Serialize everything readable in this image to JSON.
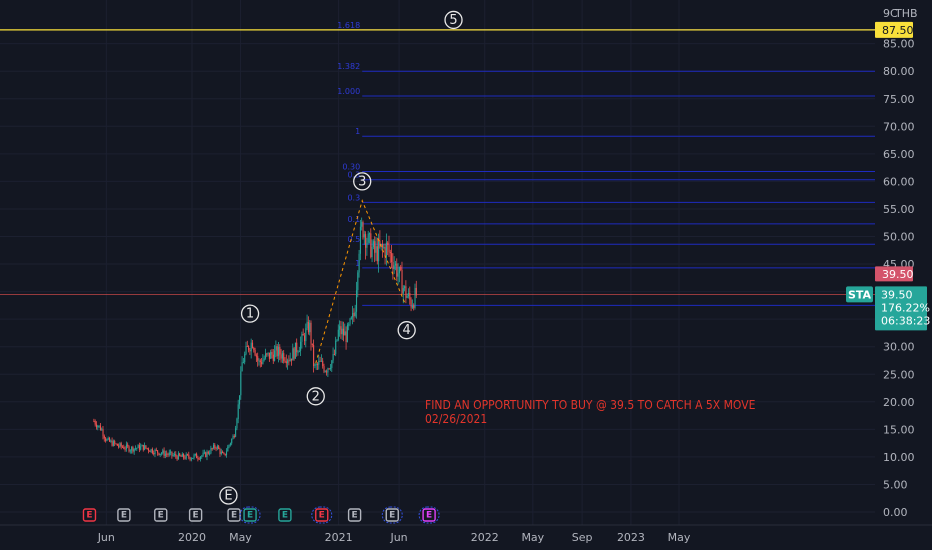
{
  "chart_data": {
    "type": "line",
    "currency": "THB",
    "currency_label": "THB",
    "symbol": "STA",
    "y_axis_top_label": "9C",
    "ylim": [
      -1.5,
      90.5
    ],
    "y_ticks": [
      "0.00",
      "5.00",
      "10.00",
      "15.00",
      "20.00",
      "25.00",
      "30.00",
      "35.00",
      "40.00",
      "45.00",
      "50.00",
      "55.00",
      "60.00",
      "65.00",
      "70.00",
      "75.00",
      "80.00",
      "85.00"
    ],
    "x_ticks": [
      "Jun",
      "2020",
      "May",
      "2021",
      "Jun",
      "2022",
      "May",
      "Sep",
      "2023",
      "May"
    ],
    "price_series": [
      [
        "2019-05",
        16.5
      ],
      [
        "2019-05-20",
        15
      ],
      [
        "2019-06",
        13
      ],
      [
        "2019-07",
        12
      ],
      [
        "2019-08",
        11.5
      ],
      [
        "2019-09",
        11.8
      ],
      [
        "2019-10",
        11
      ],
      [
        "2019-11",
        10.5
      ],
      [
        "2019-12",
        10
      ],
      [
        "2020-01",
        10
      ],
      [
        "2020-02",
        10.3
      ],
      [
        "2020-03",
        12
      ],
      [
        "2020-03-20",
        10
      ],
      [
        "2020-04",
        12
      ],
      [
        "2020-04-15",
        14
      ],
      [
        "2020-04-25",
        19
      ],
      [
        "2020-05-05",
        27
      ],
      [
        "2020-05-20",
        30
      ],
      [
        "2020-06",
        31
      ],
      [
        "2020-06-15",
        27
      ],
      [
        "2020-07",
        28
      ],
      [
        "2020-08",
        29
      ],
      [
        "2020-09",
        28
      ],
      [
        "2020-10",
        31
      ],
      [
        "2020-10-20",
        34
      ],
      [
        "2020-11",
        26
      ],
      [
        "2020-11-15",
        27
      ],
      [
        "2020-12",
        26
      ],
      [
        "2020-12-20",
        28
      ],
      [
        "2021-01",
        33
      ],
      [
        "2021-01-20",
        32
      ],
      [
        "2021-02-10",
        36
      ],
      [
        "2021-02-20",
        48
      ],
      [
        "2021-03",
        52
      ],
      [
        "2021-03-15",
        49
      ],
      [
        "2021-04",
        47
      ],
      [
        "2021-05",
        48
      ],
      [
        "2021-05-15",
        46
      ],
      [
        "2021-06",
        43
      ],
      [
        "2021-06-15",
        40
      ],
      [
        "2021-07",
        38
      ],
      [
        "2021-07-15",
        39.5
      ]
    ],
    "current_price": "39.50",
    "last_price_tag": "39.50",
    "price_change": "176.22%",
    "countdown": "06:38:23",
    "target_price": "87.50",
    "current_price_line": 39.5,
    "target_price_line": 87.5,
    "fib_levels": [
      {
        "label": "",
        "value": 37.5
      },
      {
        "label": "1",
        "value": 44.3
      },
      {
        "label": "0.5",
        "value": 48.6
      },
      {
        "label": "0.1",
        "value": 52.3
      },
      {
        "label": "0.3",
        "value": 56.2
      },
      {
        "label": "0.3",
        "value": 60.3
      },
      {
        "label": "0.30",
        "value": 61.8
      },
      {
        "label": "1",
        "value": 68.2
      },
      {
        "label": "1.000",
        "value": 75.5
      },
      {
        "label": "1.382",
        "value": 80.0
      },
      {
        "label": "1.618",
        "value": 87.5
      }
    ],
    "waves": [
      {
        "label": "E",
        "x": "2020-04-01",
        "y": 3
      },
      {
        "label": "1",
        "x": "2020-05-25",
        "y": 36
      },
      {
        "label": "2",
        "x": "2020-11-05",
        "y": 21
      },
      {
        "label": "3",
        "x": "2021-03-01",
        "y": 60
      },
      {
        "label": "4",
        "x": "2021-06-20",
        "y": 33
      },
      {
        "label": "5",
        "x": "2021-10-15",
        "y": 89.3
      }
    ],
    "earnings_markers": [
      {
        "label": "E",
        "color": "#f23645",
        "date": "2019-04-20",
        "bubble": false
      },
      {
        "label": "E",
        "color": "#b2b5be",
        "date": "2019-07-15",
        "bubble": false
      },
      {
        "label": "E",
        "color": "#b2b5be",
        "date": "2019-10-15",
        "bubble": false
      },
      {
        "label": "E",
        "color": "#b2b5be",
        "date": "2020-01-10",
        "bubble": false
      },
      {
        "label": "E",
        "color": "#b2b5be",
        "date": "2020-04-15",
        "bubble": false
      },
      {
        "label": "E",
        "color": "#26a69a",
        "date": "2020-05-25",
        "bubble": true
      },
      {
        "label": "E",
        "color": "#26a69a",
        "date": "2020-08-20",
        "bubble": false
      },
      {
        "label": "E",
        "color": "#f23645",
        "date": "2020-11-20",
        "bubble": true
      },
      {
        "label": "E",
        "color": "#b2b5be",
        "date": "2021-02-10",
        "bubble": false
      },
      {
        "label": "E",
        "color": "#b2b5be",
        "date": "2021-05-15",
        "bubble": true
      },
      {
        "label": "E",
        "color": "#e040fb",
        "date": "2021-08-15",
        "bubble": true
      }
    ]
  },
  "annotation": {
    "line1": "FIND AN OPPORTUNITY TO BUY @ 39.5 TO CATCH A 5X MOVE",
    "line2": "02/26/2021"
  },
  "colors": {
    "background": "#131722",
    "up": "#26a69a",
    "down": "#ef5350",
    "fib": "#1e2bbf",
    "target_line": "#f9e03b",
    "current_line": "#ef5350",
    "dashed_path": "#ff9800",
    "note": "#e2352b"
  }
}
